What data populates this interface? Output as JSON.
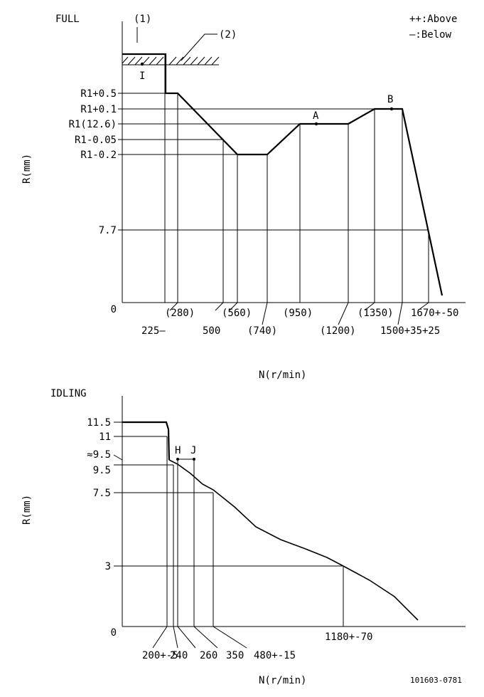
{
  "full": {
    "title": "FULL",
    "callout1": "(1)",
    "callout2": "(2)",
    "legend_above": "++:Above",
    "legend_below": "—:Below",
    "point_I": "I",
    "point_A": "A",
    "point_B": "B",
    "y_labels": [
      "R1+0.5",
      "R1+0.1",
      "R1(12.6)",
      "R1-0.05",
      "R1-0.2",
      "7.7",
      "0"
    ],
    "x_labels": [
      "(280)",
      "225—",
      "500",
      "(560)",
      "(740)",
      "(950)",
      "(1200)",
      "(1350)",
      "1670+-50",
      "1500+35+25"
    ],
    "y_axis_title": "R(mm)",
    "x_axis_title": "N(r/min)"
  },
  "idling": {
    "title": "IDLING",
    "point_H": "H",
    "point_J": "J",
    "y_labels": [
      "11.5",
      "11",
      "≈9.5",
      "9.5",
      "7.5",
      "3",
      "0"
    ],
    "x_labels": [
      "200+-5",
      "240",
      "260",
      "350",
      "480+-15",
      "1180+-70"
    ],
    "y_axis_title": "R(mm)",
    "x_axis_title": "N(r/min)"
  },
  "figure_id": "101603-0781"
}
